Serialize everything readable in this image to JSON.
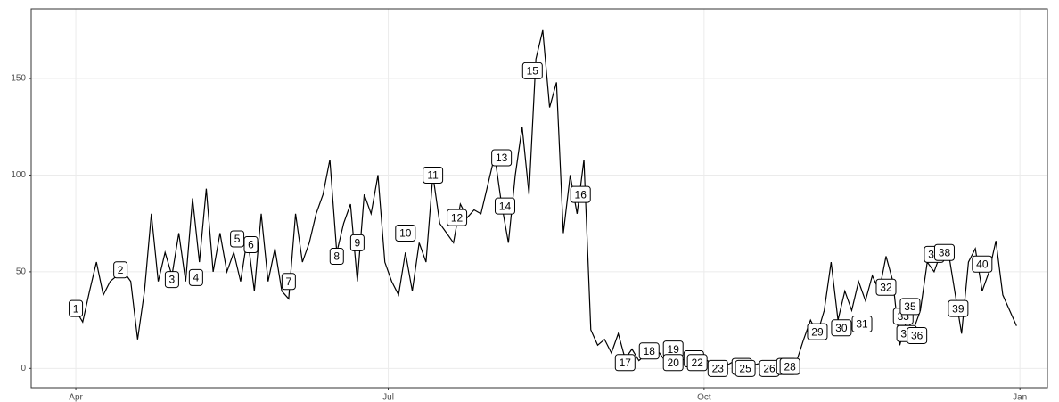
{
  "chart_data": {
    "type": "line",
    "x": [
      0,
      2,
      4,
      6,
      8,
      10,
      12,
      14,
      16,
      18,
      20,
      22,
      24,
      26,
      28,
      30,
      32,
      34,
      36,
      38,
      40,
      42,
      44,
      46,
      48,
      50,
      52,
      54,
      56,
      58,
      60,
      62,
      64,
      66,
      68,
      70,
      72,
      74,
      76,
      78,
      80,
      82,
      84,
      86,
      88,
      90,
      92,
      94,
      96,
      98,
      100,
      102,
      104,
      106,
      108,
      110,
      112,
      114,
      116,
      118,
      120,
      122,
      124,
      126,
      128,
      130,
      132,
      134,
      136,
      138,
      140,
      142,
      144,
      146,
      148,
      150,
      152,
      154,
      156,
      158,
      160,
      162,
      164,
      166,
      168,
      170,
      172,
      174,
      176,
      178,
      180,
      182,
      184,
      186,
      188,
      190,
      192,
      194,
      196,
      198,
      200,
      202,
      204,
      206,
      208,
      210,
      212,
      214,
      216,
      218,
      220,
      222,
      224,
      226,
      228,
      230,
      232,
      234,
      236,
      238,
      240,
      242,
      244,
      246,
      248,
      250,
      252,
      254,
      256,
      258,
      260,
      262,
      264,
      266,
      268,
      270,
      272,
      274
    ],
    "series": [
      {
        "color": "#000000",
        "values": [
          30,
          24,
          40,
          55,
          38,
          45,
          48,
          50,
          45,
          15,
          40,
          80,
          45,
          60,
          48,
          70,
          45,
          88,
          55,
          93,
          50,
          70,
          50,
          60,
          45,
          68,
          40,
          80,
          45,
          62,
          40,
          36,
          80,
          55,
          65,
          80,
          90,
          108,
          60,
          75,
          85,
          45,
          90,
          80,
          100,
          55,
          45,
          38,
          60,
          40,
          65,
          55,
          100,
          75,
          70,
          65,
          85,
          78,
          82,
          80,
          95,
          110,
          85,
          65,
          100,
          125,
          90,
          160,
          175,
          135,
          148,
          70,
          100,
          80,
          108,
          20,
          12,
          15,
          8,
          18,
          5,
          10,
          4,
          7,
          6,
          8,
          3,
          6,
          5,
          4,
          6,
          3,
          4,
          2,
          3,
          2,
          4,
          1,
          3,
          2,
          3,
          1,
          2,
          3,
          2,
          4,
          15,
          25,
          18,
          30,
          55,
          25,
          40,
          30,
          45,
          35,
          48,
          40,
          58,
          45,
          12,
          25,
          20,
          30,
          55,
          50,
          60,
          62,
          40,
          18,
          55,
          62,
          40,
          50,
          66,
          38,
          30,
          22
        ]
      }
    ],
    "annotations": [
      {
        "label": "1",
        "x": 0,
        "y": 31
      },
      {
        "label": "2",
        "x": 13,
        "y": 51
      },
      {
        "label": "3",
        "x": 28,
        "y": 46
      },
      {
        "label": "4",
        "x": 35,
        "y": 47
      },
      {
        "label": "5",
        "x": 47,
        "y": 67
      },
      {
        "label": "6",
        "x": 51,
        "y": 64
      },
      {
        "label": "7",
        "x": 62,
        "y": 45
      },
      {
        "label": "8",
        "x": 76,
        "y": 58
      },
      {
        "label": "9",
        "x": 82,
        "y": 65
      },
      {
        "label": "10",
        "x": 96,
        "y": 70
      },
      {
        "label": "11",
        "x": 104,
        "y": 100
      },
      {
        "label": "12",
        "x": 111,
        "y": 78
      },
      {
        "label": "13",
        "x": 124,
        "y": 109
      },
      {
        "label": "14",
        "x": 125,
        "y": 84
      },
      {
        "label": "15",
        "x": 133,
        "y": 154
      },
      {
        "label": "16",
        "x": 147,
        "y": 90
      },
      {
        "label": "17",
        "x": 160,
        "y": 3
      },
      {
        "label": "18",
        "x": 167,
        "y": 9
      },
      {
        "label": "19",
        "x": 174,
        "y": 10
      },
      {
        "label": "20",
        "x": 174,
        "y": 3
      },
      {
        "label": "21",
        "x": 180,
        "y": 5
      },
      {
        "label": "22",
        "x": 181,
        "y": 3
      },
      {
        "label": "23",
        "x": 187,
        "y": 0
      },
      {
        "label": "24",
        "x": 194,
        "y": 1
      },
      {
        "label": "25",
        "x": 195,
        "y": 0
      },
      {
        "label": "26",
        "x": 202,
        "y": 0
      },
      {
        "label": "27",
        "x": 207,
        "y": 1
      },
      {
        "label": "28",
        "x": 208,
        "y": 1
      },
      {
        "label": "29",
        "x": 216,
        "y": 19
      },
      {
        "label": "30",
        "x": 223,
        "y": 21
      },
      {
        "label": "31",
        "x": 229,
        "y": 23
      },
      {
        "label": "32",
        "x": 236,
        "y": 42
      },
      {
        "label": "33",
        "x": 241,
        "y": 27
      },
      {
        "label": "34",
        "x": 242,
        "y": 18
      },
      {
        "label": "35",
        "x": 243,
        "y": 32
      },
      {
        "label": "36",
        "x": 245,
        "y": 17
      },
      {
        "label": "37",
        "x": 250,
        "y": 59
      },
      {
        "label": "38",
        "x": 253,
        "y": 60
      },
      {
        "label": "39",
        "x": 257,
        "y": 31
      },
      {
        "label": "40",
        "x": 264,
        "y": 54
      }
    ],
    "xlim": [
      -13,
      283
    ],
    "xticks": [
      {
        "value": 0,
        "label": "Apr"
      },
      {
        "value": 91,
        "label": "Jul"
      },
      {
        "value": 183,
        "label": "Oct"
      },
      {
        "value": 275,
        "label": "Jan"
      }
    ],
    "ylim": [
      -10,
      186
    ],
    "yticks": [
      0,
      50,
      100,
      150
    ],
    "grid": true
  }
}
